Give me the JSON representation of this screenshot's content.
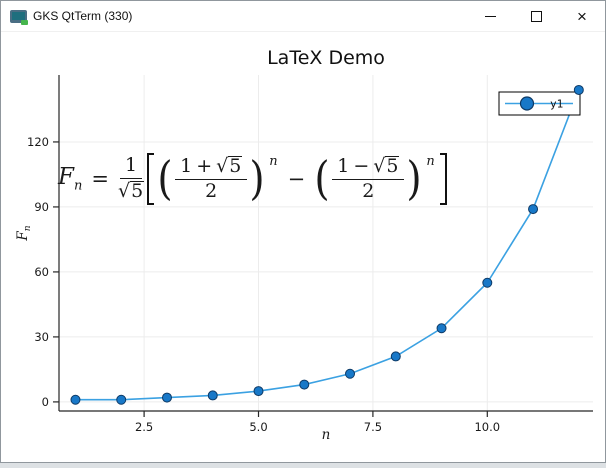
{
  "window": {
    "title": "GKS QtTerm (330)",
    "icon": "qtterm-monitor-icon",
    "controls": {
      "minimize": "—",
      "maximize": "□",
      "close": "×"
    }
  },
  "chart_data": {
    "type": "line",
    "title": "LaTeX Demo",
    "xlabel": "n",
    "ylabel_base": "F",
    "ylabel_sub": "n",
    "series": [
      {
        "name": "y1",
        "x": [
          1,
          2,
          3,
          4,
          5,
          6,
          7,
          8,
          9,
          10,
          11,
          12
        ],
        "y": [
          1,
          1,
          2,
          3,
          5,
          8,
          13,
          21,
          34,
          55,
          89,
          144
        ],
        "line_color": "#3ba1e2",
        "marker_fill": "#1878c8",
        "marker_stroke": "#0e3a66",
        "marker_size": 4.5
      }
    ],
    "xticks": {
      "values": [
        2.5,
        5.0,
        7.5,
        10.0
      ],
      "labels": [
        "2.5",
        "5.0",
        "7.5",
        "10.0"
      ]
    },
    "yticks": {
      "values": [
        0,
        30,
        60,
        90,
        120
      ],
      "labels": [
        "0",
        "30",
        "60",
        "90",
        "120"
      ]
    },
    "xlim": [
      0.64,
      12.31
    ],
    "ylim": [
      -4.2,
      150.9
    ],
    "grid": true,
    "grid_color": "#ececec",
    "axis_color": "#262626",
    "text_color": "#1a1a1a",
    "legend": {
      "position": "top-right",
      "entries": [
        "y1"
      ]
    }
  },
  "formula": {
    "lhs": {
      "var": "F",
      "sub": "n"
    },
    "rel": "=",
    "coef": {
      "num": "1",
      "sqrt_sym": "√",
      "den_sqrt": "5"
    },
    "op_between": "−",
    "terms": [
      {
        "num_left": "1",
        "num_op": "+",
        "sqrt_sym": "√",
        "num_sqrt": "5",
        "den": "2",
        "exp": "n"
      },
      {
        "num_left": "1",
        "num_op": "−",
        "sqrt_sym": "√",
        "num_sqrt": "5",
        "den": "2",
        "exp": "n"
      }
    ]
  }
}
